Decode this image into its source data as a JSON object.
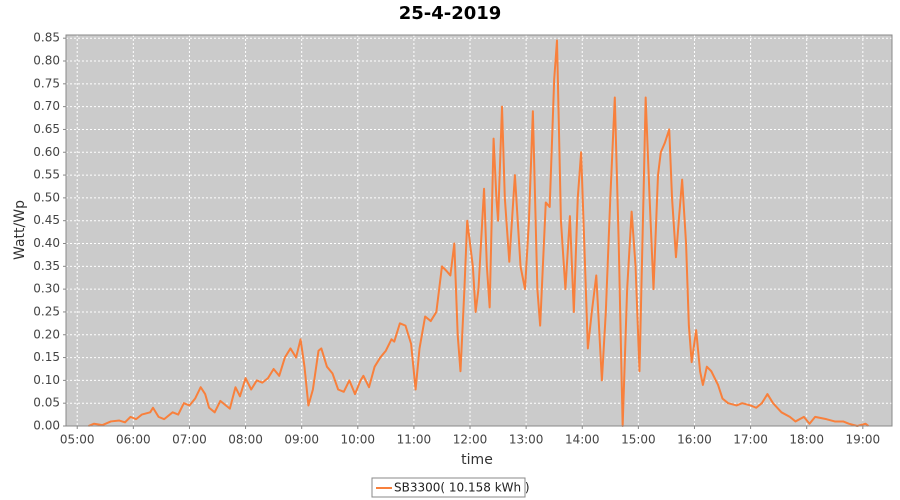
{
  "chart_data": {
    "type": "line",
    "title": "25-4-2019",
    "x_label": "time",
    "y_label": "Watt/Wp",
    "xlim": [
      4.8,
      19.52
    ],
    "ylim": [
      0,
      0.857
    ],
    "xticks": [
      {
        "value": 5,
        "label": "05:00"
      },
      {
        "value": 6,
        "label": "06:00"
      },
      {
        "value": 7,
        "label": "07:00"
      },
      {
        "value": 8,
        "label": "08:00"
      },
      {
        "value": 9,
        "label": "09:00"
      },
      {
        "value": 10,
        "label": "10:00"
      },
      {
        "value": 11,
        "label": "11:00"
      },
      {
        "value": 12,
        "label": "12:00"
      },
      {
        "value": 13,
        "label": "13:00"
      },
      {
        "value": 14,
        "label": "14:00"
      },
      {
        "value": 15,
        "label": "15:00"
      },
      {
        "value": 16,
        "label": "16:00"
      },
      {
        "value": 17,
        "label": "17:00"
      },
      {
        "value": 18,
        "label": "18:00"
      },
      {
        "value": 19,
        "label": "19:00"
      }
    ],
    "yticks": [
      {
        "value": 0,
        "label": "0.00"
      },
      0.05,
      {
        "value": 0.1,
        "label": "0.10"
      },
      0.15,
      {
        "value": 0.2,
        "label": "0.20"
      },
      0.25,
      {
        "value": 0.3,
        "label": "0.30"
      },
      0.35,
      {
        "value": 0.4,
        "label": "0.40"
      },
      0.45,
      {
        "value": 0.5,
        "label": "0.50"
      },
      0.55,
      {
        "value": 0.6,
        "label": "0.60"
      },
      0.65,
      {
        "value": 0.7,
        "label": "0.70"
      },
      0.75,
      {
        "value": 0.8,
        "label": "0.80"
      },
      0.85
    ],
    "grid": true,
    "legend": "bottom",
    "x": [
      5.2,
      5.3,
      5.45,
      5.6,
      5.75,
      5.85,
      5.95,
      6.05,
      6.15,
      6.3,
      6.35,
      6.45,
      6.55,
      6.7,
      6.8,
      6.9,
      7.0,
      7.1,
      7.2,
      7.28,
      7.35,
      7.45,
      7.55,
      7.65,
      7.72,
      7.82,
      7.9,
      8.0,
      8.1,
      8.2,
      8.3,
      8.4,
      8.5,
      8.6,
      8.7,
      8.8,
      8.9,
      8.98,
      9.05,
      9.12,
      9.2,
      9.3,
      9.35,
      9.45,
      9.55,
      9.65,
      9.75,
      9.85,
      9.95,
      10.05,
      10.1,
      10.2,
      10.3,
      10.4,
      10.5,
      10.6,
      10.65,
      10.75,
      10.85,
      10.95,
      11.03,
      11.1,
      11.2,
      11.3,
      11.4,
      11.5,
      11.58,
      11.65,
      11.72,
      11.78,
      11.83,
      11.9,
      11.95,
      12.05,
      12.1,
      12.15,
      12.25,
      12.3,
      12.35,
      12.42,
      12.47,
      12.5,
      12.57,
      12.62,
      12.7,
      12.8,
      12.85,
      12.9,
      12.98,
      13.05,
      13.12,
      13.2,
      13.25,
      13.35,
      13.42,
      13.5,
      13.55,
      13.62,
      13.7,
      13.78,
      13.85,
      13.92,
      13.98,
      14.05,
      14.1,
      14.17,
      14.25,
      14.35,
      14.42,
      14.5,
      14.58,
      14.65,
      14.72,
      14.8,
      14.88,
      14.95,
      15.02,
      15.1,
      15.13,
      15.2,
      15.27,
      15.35,
      15.4,
      15.47,
      15.55,
      15.6,
      15.67,
      15.72,
      15.78,
      15.85,
      15.9,
      15.95,
      16.03,
      16.1,
      16.15,
      16.22,
      16.3,
      16.42,
      16.5,
      16.6,
      16.75,
      16.85,
      17.0,
      17.1,
      17.2,
      17.3,
      17.4,
      17.55,
      17.7,
      17.8,
      17.95,
      18.05,
      18.15,
      18.35,
      18.5,
      18.65,
      18.75,
      18.9,
      19.05,
      19.1
    ],
    "series": [
      {
        "name": "SB3300( 10.158 kWh )",
        "color": "#f8803c",
        "values": [
          0.0,
          0.005,
          0.002,
          0.01,
          0.012,
          0.008,
          0.02,
          0.015,
          0.025,
          0.03,
          0.04,
          0.02,
          0.015,
          0.03,
          0.025,
          0.05,
          0.045,
          0.06,
          0.085,
          0.07,
          0.04,
          0.03,
          0.055,
          0.045,
          0.038,
          0.085,
          0.065,
          0.105,
          0.08,
          0.1,
          0.095,
          0.105,
          0.125,
          0.11,
          0.15,
          0.17,
          0.15,
          0.19,
          0.13,
          0.045,
          0.08,
          0.165,
          0.17,
          0.13,
          0.115,
          0.08,
          0.075,
          0.1,
          0.07,
          0.1,
          0.11,
          0.085,
          0.13,
          0.15,
          0.165,
          0.19,
          0.185,
          0.225,
          0.22,
          0.18,
          0.08,
          0.17,
          0.24,
          0.23,
          0.25,
          0.35,
          0.34,
          0.33,
          0.4,
          0.2,
          0.12,
          0.3,
          0.45,
          0.35,
          0.25,
          0.3,
          0.52,
          0.35,
          0.26,
          0.63,
          0.5,
          0.45,
          0.7,
          0.5,
          0.36,
          0.55,
          0.45,
          0.35,
          0.3,
          0.45,
          0.69,
          0.3,
          0.22,
          0.49,
          0.48,
          0.76,
          0.845,
          0.45,
          0.3,
          0.46,
          0.25,
          0.5,
          0.6,
          0.35,
          0.17,
          0.25,
          0.33,
          0.1,
          0.25,
          0.5,
          0.72,
          0.4,
          0.0,
          0.3,
          0.47,
          0.35,
          0.12,
          0.55,
          0.72,
          0.5,
          0.3,
          0.55,
          0.6,
          0.62,
          0.65,
          0.5,
          0.37,
          0.45,
          0.54,
          0.4,
          0.22,
          0.14,
          0.21,
          0.12,
          0.09,
          0.13,
          0.12,
          0.09,
          0.06,
          0.05,
          0.045,
          0.05,
          0.045,
          0.04,
          0.05,
          0.07,
          0.05,
          0.03,
          0.02,
          0.01,
          0.02,
          0.005,
          0.02,
          0.015,
          0.01,
          0.01,
          0.005,
          0.0,
          0.005,
          0.0
        ]
      }
    ]
  }
}
